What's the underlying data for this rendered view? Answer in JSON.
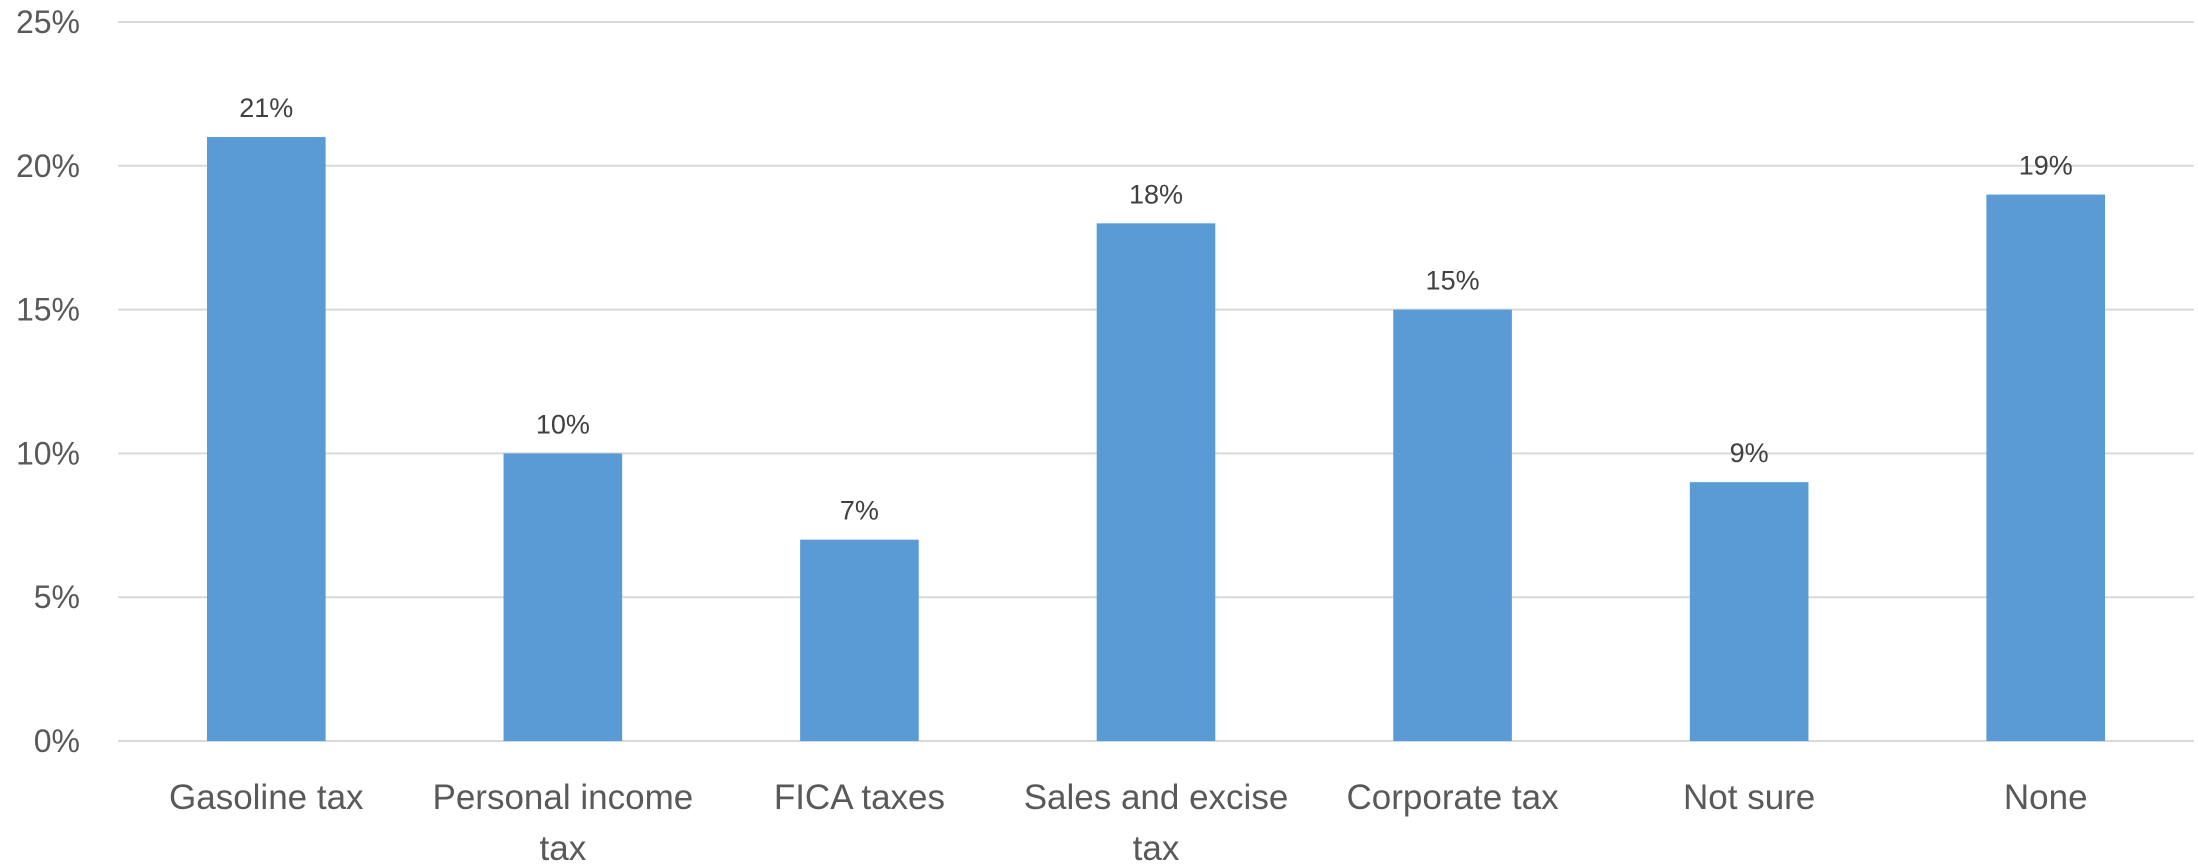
{
  "chart_data": {
    "type": "bar",
    "title": "",
    "xlabel": "",
    "ylabel": "",
    "categories": [
      [
        "Gasoline tax"
      ],
      [
        "Personal income",
        "tax"
      ],
      [
        "FICA taxes"
      ],
      [
        "Sales and excise",
        "tax"
      ],
      [
        "Corporate tax"
      ],
      [
        "Not sure"
      ],
      [
        "None"
      ]
    ],
    "values": [
      21,
      10,
      7,
      18,
      15,
      9,
      19
    ],
    "data_labels": [
      "21%",
      "10%",
      "7%",
      "18%",
      "15%",
      "9%",
      "19%"
    ],
    "ylim": [
      0,
      25
    ],
    "yticks": [
      0,
      5,
      10,
      15,
      20,
      25
    ],
    "ytick_labels": [
      "0%",
      "5%",
      "10%",
      "15%",
      "20%",
      "25%"
    ],
    "grid": true,
    "legend": "none",
    "bar_color": "#5b9bd5",
    "grid_color": "#d9d9d9",
    "text_color": "#595959"
  }
}
